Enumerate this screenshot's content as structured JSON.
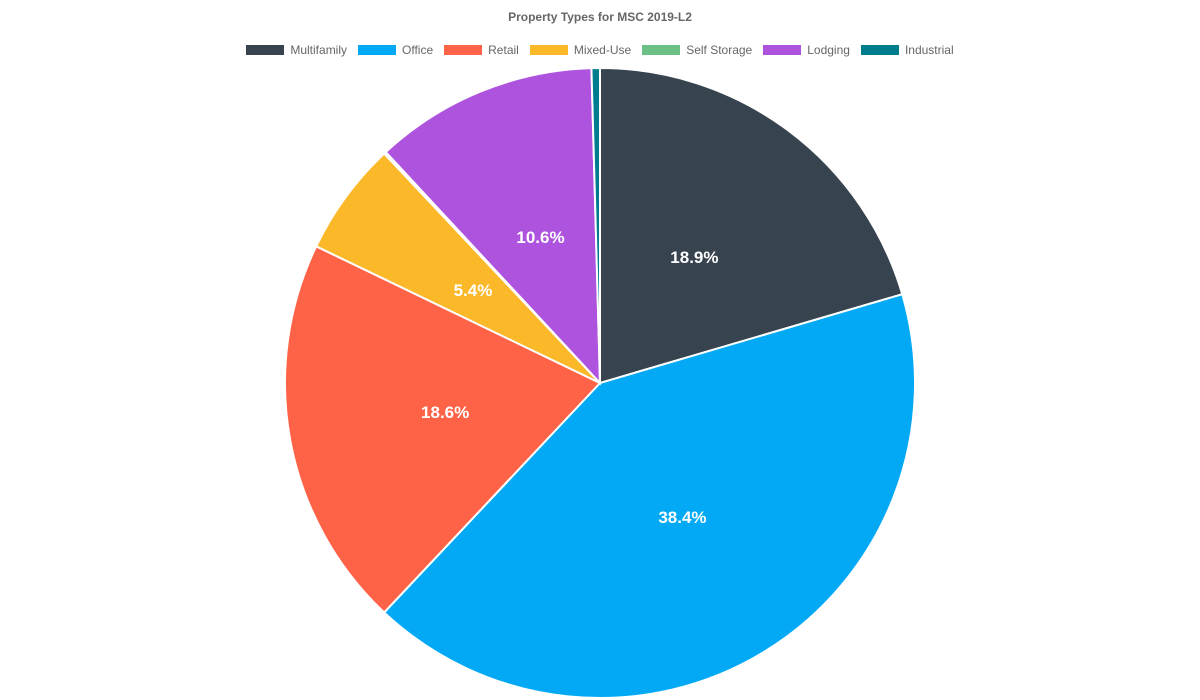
{
  "chart_data": {
    "type": "pie",
    "title": "Property Types for MSC 2019-L2",
    "legend_position": "top",
    "categories": [
      "Multifamily",
      "Office",
      "Retail",
      "Mixed-Use",
      "Self Storage",
      "Lodging",
      "Industrial"
    ],
    "values": [
      18.9,
      38.4,
      18.6,
      5.4,
      0.1,
      10.6,
      0.4
    ],
    "data_labels": [
      "18.9%",
      "38.4%",
      "18.6%",
      "5.4%",
      "",
      "10.6%",
      ""
    ],
    "colors": [
      "#37434f",
      "#03a9f4",
      "#ff6347",
      "#fbb829",
      "#6ac085",
      "#ad53de",
      "#007c8f"
    ]
  }
}
